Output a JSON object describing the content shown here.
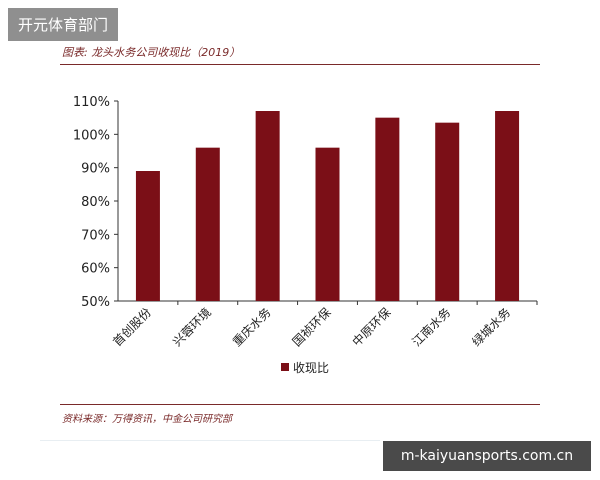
{
  "watermark_top": "开元体育部门",
  "watermark_bottom": "m-kaiyuansports.com.cn",
  "caption": "图表: 龙头水务公司收现比（2019）",
  "source": "资料来源：万得资讯，中金公司研究部",
  "colors": {
    "bar": "#7b0f17",
    "rule": "#7a2a2a"
  },
  "chart_data": {
    "type": "bar",
    "categories": [
      "首创股份",
      "兴蓉环境",
      "重庆水务",
      "国祯环保",
      "中原环保",
      "江南水务",
      "绿城水务"
    ],
    "series": [
      {
        "name": "收现比",
        "values": [
          89,
          96,
          107,
          96,
          105,
          103.5,
          107
        ]
      }
    ],
    "ylim": [
      50,
      110
    ],
    "yticks": [
      "50%",
      "60%",
      "70%",
      "80%",
      "90%",
      "100%",
      "110%"
    ],
    "legend_position": "bottom-center",
    "grid": false
  }
}
